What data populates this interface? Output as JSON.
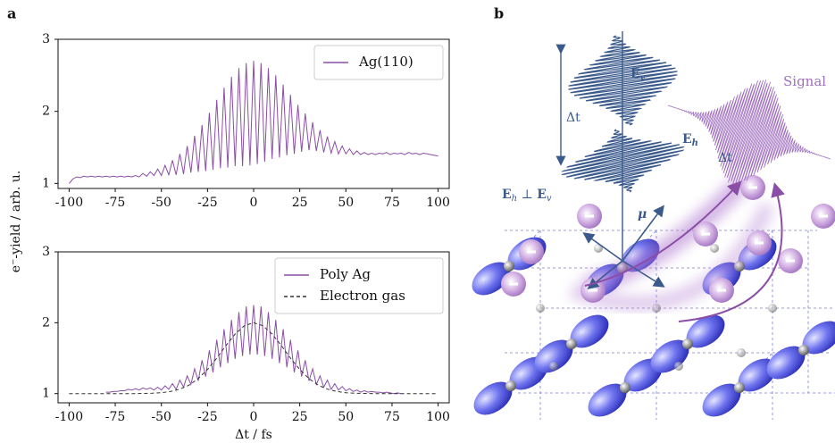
{
  "panel_labels": [
    "a",
    "b"
  ],
  "shared_ylabel": "e⁻-yield / arb. u.",
  "chart_data": [
    {
      "type": "line",
      "xlim": [
        -106,
        106
      ],
      "ylim": [
        0.93,
        3.0
      ],
      "xticks": [
        -100,
        -75,
        -50,
        -25,
        0,
        25,
        50,
        75,
        100
      ],
      "yticks": [
        1,
        2,
        3
      ],
      "legend": "upper right",
      "series": [
        {
          "name": "Ag(110)",
          "color": "#8b4ea6",
          "linestyle": "solid",
          "x": [
            -100,
            -98,
            -96,
            -94,
            -92,
            -90,
            -88,
            -86,
            -84,
            -82,
            -80,
            -78,
            -76,
            -74,
            -72,
            -70,
            -68,
            -66,
            -64,
            -62,
            -60,
            -58,
            -56,
            -54,
            -52,
            -50,
            -48,
            -46,
            -44,
            -42,
            -40,
            -38,
            -36,
            -34,
            -32,
            -30,
            -28,
            -26,
            -24,
            -22,
            -20,
            -18,
            -16,
            -14,
            -12,
            -10,
            -8,
            -6,
            -4,
            -2,
            0,
            2,
            4,
            6,
            8,
            10,
            12,
            14,
            16,
            18,
            20,
            22,
            24,
            26,
            28,
            30,
            32,
            34,
            36,
            38,
            40,
            42,
            44,
            46,
            48,
            50,
            52,
            54,
            56,
            58,
            60,
            62,
            64,
            66,
            68,
            70,
            72,
            74,
            76,
            78,
            80,
            82,
            84,
            86,
            88,
            90,
            92,
            94,
            96,
            98,
            100
          ],
          "values": [
            1.0,
            1.06,
            1.09,
            1.08,
            1.1,
            1.09,
            1.1,
            1.09,
            1.1,
            1.09,
            1.1,
            1.09,
            1.1,
            1.09,
            1.1,
            1.09,
            1.1,
            1.09,
            1.11,
            1.09,
            1.14,
            1.1,
            1.16,
            1.11,
            1.2,
            1.11,
            1.25,
            1.12,
            1.32,
            1.12,
            1.41,
            1.13,
            1.52,
            1.15,
            1.66,
            1.16,
            1.81,
            1.17,
            1.98,
            1.19,
            2.16,
            1.21,
            2.33,
            1.22,
            2.48,
            1.24,
            2.6,
            1.24,
            2.67,
            1.25,
            2.7,
            1.27,
            2.67,
            1.3,
            2.6,
            1.34,
            2.5,
            1.36,
            2.37,
            1.39,
            2.23,
            1.41,
            2.09,
            1.44,
            1.97,
            1.46,
            1.85,
            1.45,
            1.74,
            1.43,
            1.65,
            1.42,
            1.58,
            1.41,
            1.52,
            1.41,
            1.48,
            1.4,
            1.45,
            1.4,
            1.43,
            1.4,
            1.42,
            1.4,
            1.42,
            1.41,
            1.43,
            1.4,
            1.42,
            1.41,
            1.42,
            1.4,
            1.43,
            1.41,
            1.42,
            1.4,
            1.42,
            1.41,
            1.4,
            1.39,
            1.38
          ]
        }
      ]
    },
    {
      "type": "line",
      "xlabel": "Δt / fs",
      "xlim": [
        -106,
        106
      ],
      "ylim": [
        0.87,
        3.0
      ],
      "xticks": [
        -100,
        -75,
        -50,
        -25,
        0,
        25,
        50,
        75,
        100
      ],
      "yticks": [
        1,
        2,
        3
      ],
      "legend": "upper right",
      "series": [
        {
          "name": "Poly Ag",
          "color": "#8b4ea6",
          "linestyle": "solid",
          "x": [
            -80,
            -78,
            -76,
            -74,
            -72,
            -70,
            -68,
            -66,
            -64,
            -62,
            -60,
            -58,
            -56,
            -54,
            -52,
            -50,
            -48,
            -46,
            -44,
            -42,
            -40,
            -38,
            -36,
            -34,
            -32,
            -30,
            -28,
            -26,
            -24,
            -22,
            -20,
            -18,
            -16,
            -14,
            -12,
            -10,
            -8,
            -6,
            -4,
            -2,
            0,
            2,
            4,
            6,
            8,
            10,
            12,
            14,
            16,
            18,
            20,
            22,
            24,
            26,
            28,
            30,
            32,
            34,
            36,
            38,
            40,
            42,
            44,
            46,
            48,
            50,
            52,
            54,
            56,
            58,
            60,
            62,
            64,
            66,
            68,
            70,
            72,
            74,
            76,
            78,
            80
          ],
          "values": [
            1.02,
            1.02,
            1.03,
            1.03,
            1.04,
            1.04,
            1.06,
            1.05,
            1.07,
            1.05,
            1.08,
            1.06,
            1.08,
            1.05,
            1.09,
            1.05,
            1.11,
            1.06,
            1.14,
            1.06,
            1.19,
            1.09,
            1.25,
            1.13,
            1.35,
            1.18,
            1.47,
            1.24,
            1.61,
            1.3,
            1.76,
            1.37,
            1.91,
            1.43,
            2.04,
            1.49,
            2.15,
            1.53,
            2.23,
            1.55,
            2.25,
            1.55,
            2.23,
            1.53,
            2.15,
            1.49,
            2.04,
            1.43,
            1.91,
            1.37,
            1.76,
            1.3,
            1.61,
            1.24,
            1.47,
            1.18,
            1.35,
            1.13,
            1.25,
            1.09,
            1.19,
            1.06,
            1.14,
            1.05,
            1.1,
            1.04,
            1.07,
            1.03,
            1.05,
            1.02,
            1.04,
            1.02,
            1.03,
            1.02,
            1.02,
            1.01,
            1.02,
            1.01,
            1.0,
            1.01,
            1.0
          ]
        },
        {
          "name": "Electron gas",
          "color": "#333333",
          "linestyle": "dashed",
          "x": [
            -100,
            -95,
            -90,
            -85,
            -80,
            -75,
            -70,
            -65,
            -60,
            -55,
            -50,
            -45,
            -40,
            -35,
            -30,
            -25,
            -20,
            -15,
            -10,
            -5,
            0,
            5,
            10,
            15,
            20,
            25,
            30,
            35,
            40,
            45,
            50,
            55,
            60,
            65,
            70,
            75,
            80,
            85,
            90,
            95,
            100
          ],
          "values": [
            1.0,
            1.0,
            1.0,
            1.0,
            1.0,
            1.0,
            1.0,
            1.0,
            1.002,
            1.005,
            1.013,
            1.03,
            1.063,
            1.12,
            1.211,
            1.339,
            1.5,
            1.678,
            1.841,
            1.958,
            2.0,
            1.958,
            1.841,
            1.678,
            1.5,
            1.339,
            1.211,
            1.12,
            1.063,
            1.03,
            1.013,
            1.005,
            1.002,
            1.0,
            1.0,
            1.0,
            1.0,
            1.0,
            1.0,
            1.0,
            1.0
          ]
        }
      ]
    }
  ],
  "illustration": {
    "signal": "Signal",
    "e_v": {
      "symbol": "E",
      "subscript": "v"
    },
    "e_h": {
      "symbol": "E",
      "subscript": "h"
    },
    "delta_t_vertical": "Δt",
    "delta_t_signal": "Δt",
    "perp": {
      "parts": [
        "E",
        "h",
        " ⊥ ",
        "E",
        "v"
      ]
    },
    "mu": "μ"
  }
}
